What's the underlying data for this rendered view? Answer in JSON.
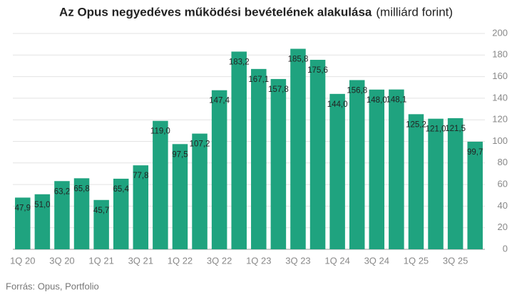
{
  "chart_data": {
    "type": "bar",
    "title": "Az Opus negyedéves működési bevételének alakulása",
    "subtitle": "(milliárd forint)",
    "source": "Forrás: Opus, Portfolio",
    "categories": [
      "1Q 20",
      null,
      "3Q 20",
      null,
      "1Q 21",
      null,
      "3Q 21",
      null,
      "1Q 22",
      null,
      "3Q 22",
      null,
      "1Q 23",
      null,
      "3Q 23",
      null,
      "1Q 24",
      null,
      "3Q 24",
      null,
      "1Q 25",
      null,
      "3Q 25",
      null
    ],
    "values": [
      47.9,
      51.0,
      63.2,
      65.8,
      45.7,
      65.4,
      77.8,
      119.0,
      97.5,
      107.2,
      147.4,
      183.2,
      167.1,
      157.8,
      185.8,
      175.6,
      144.0,
      156.8,
      148.0,
      148.1,
      125.2,
      121.0,
      121.5,
      99.7
    ],
    "value_labels": [
      "47,9",
      "51,0",
      "63,2",
      "65,8",
      "45,7",
      "65,4",
      "77,8",
      "119,0",
      "97,5",
      "107,2",
      "147,4",
      "183,2",
      "167,1",
      "157,8",
      "185,8",
      "175,6",
      "144,0",
      "156,8",
      "148,0",
      "148,1",
      "125,2",
      "121,0",
      "121,5",
      "99,7"
    ],
    "color": "#1fa37f",
    "ylim": [
      0,
      200
    ],
    "yticks": [
      0,
      20,
      40,
      60,
      80,
      100,
      120,
      140,
      160,
      180,
      200
    ],
    "grid": true
  }
}
